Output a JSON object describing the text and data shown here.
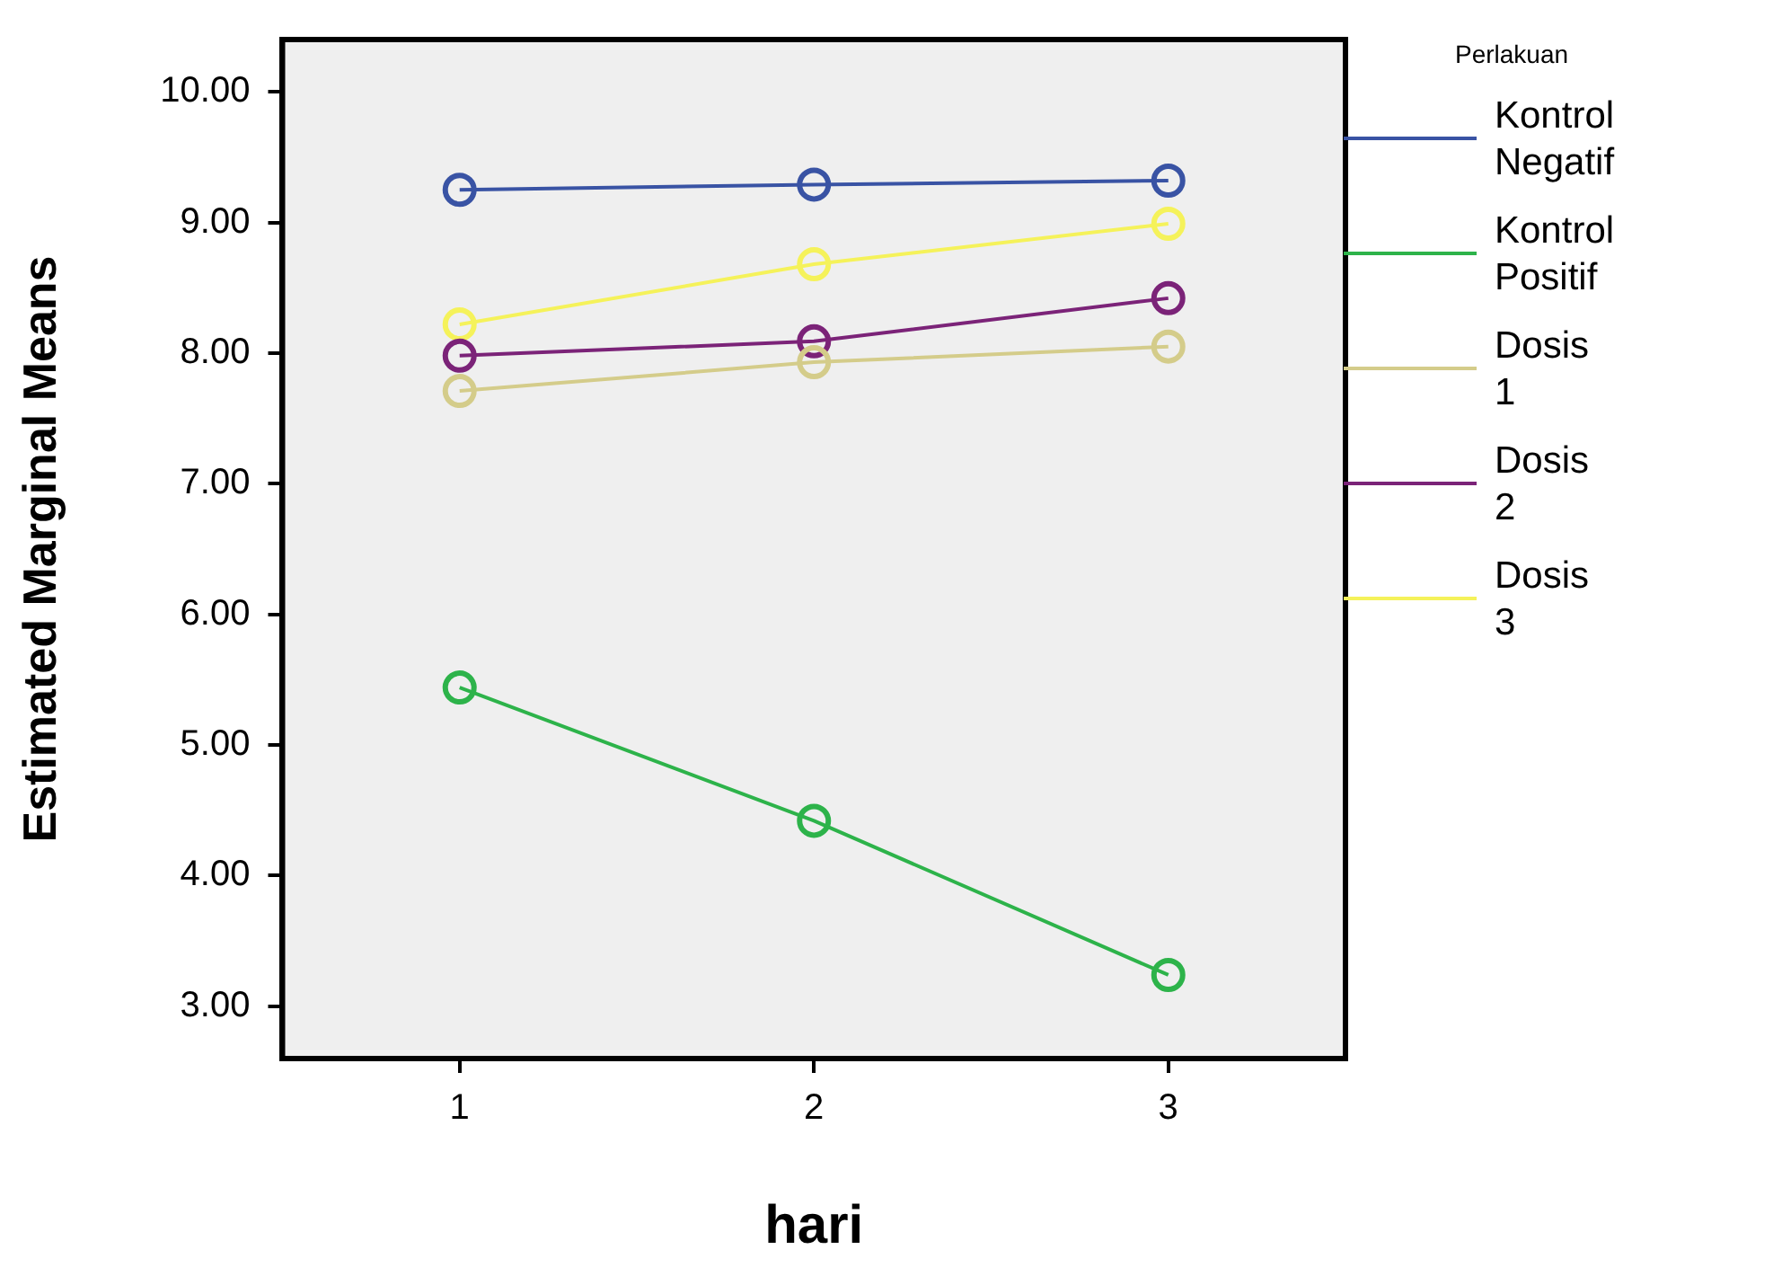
{
  "chart_data": {
    "type": "line",
    "xlabel": "hari",
    "ylabel": "Estimated Marginal Means",
    "legend_title": "Perlakuan",
    "categories": [
      "1",
      "2",
      "3"
    ],
    "series": [
      {
        "name": "Kontrol Negatif",
        "color": "#3953a4",
        "values": [
          9.25,
          9.29,
          9.32
        ]
      },
      {
        "name": "Kontrol Positif",
        "color": "#2db34a",
        "values": [
          5.44,
          4.42,
          3.24
        ]
      },
      {
        "name": "Dosis 1",
        "color": "#d4cc8a",
        "values": [
          7.71,
          7.93,
          8.05
        ]
      },
      {
        "name": "Dosis 2",
        "color": "#7b2378",
        "values": [
          7.98,
          8.09,
          8.42
        ]
      },
      {
        "name": "Dosis 3",
        "color": "#f5f25a",
        "values": [
          8.22,
          8.68,
          8.99
        ]
      }
    ],
    "ylim": [
      2.6,
      10.4
    ],
    "yticks": [
      {
        "value": 3,
        "label": "3.00"
      },
      {
        "value": 4,
        "label": "4.00"
      },
      {
        "value": 5,
        "label": "5.00"
      },
      {
        "value": 6,
        "label": "6.00"
      },
      {
        "value": 7,
        "label": "7.00"
      },
      {
        "value": 8,
        "label": "8.00"
      },
      {
        "value": 9,
        "label": "9.00"
      },
      {
        "value": 10,
        "label": "10.00"
      }
    ],
    "grid": false,
    "legend": "right",
    "marker": "circle",
    "line_style": "solid"
  }
}
